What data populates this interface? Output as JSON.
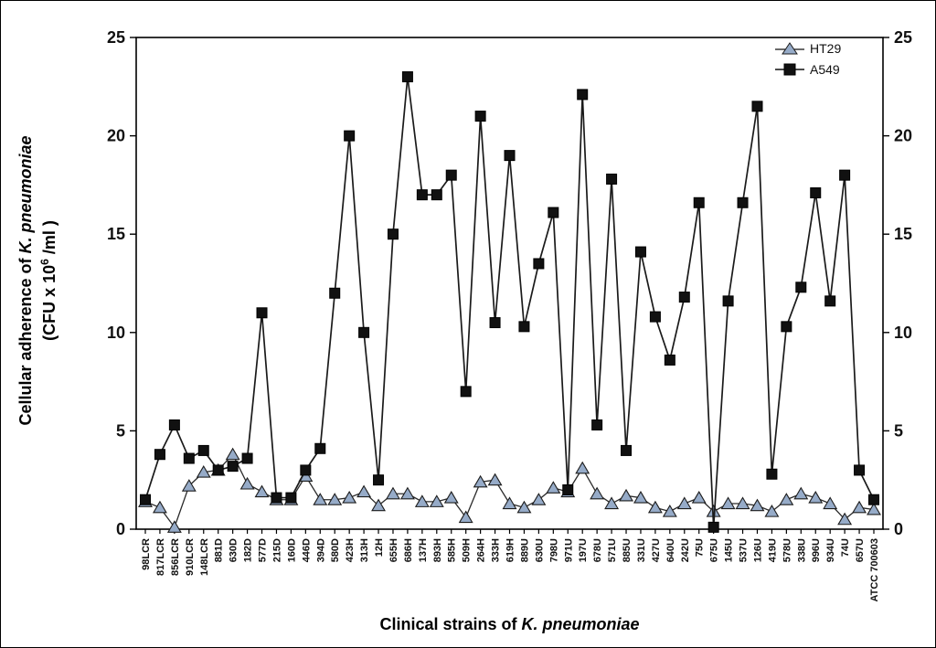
{
  "figure": {
    "y_label_line1_prefix": "Cellular adherence of ",
    "y_label_line1_italic": "K. pneumoniae",
    "y_label_line2_a": "(CFU x 10",
    "y_label_line2_sup": "6",
    "y_label_line2_b": " /ml )",
    "x_label_prefix": "Clinical strains of ",
    "x_label_italic": "K. pneumoniae"
  },
  "legend": {
    "items": [
      {
        "label": "HT29",
        "marker": "triangle"
      },
      {
        "label": "A549",
        "marker": "square"
      }
    ]
  },
  "chart_data": {
    "type": "line",
    "title": "",
    "xlabel": "Clinical strains of K. pneumoniae",
    "ylabel": "Cellular adherence of K. pneumoniae (CFU x 10^6 /ml)",
    "ylim": [
      0,
      25
    ],
    "yticks": [
      0,
      5,
      10,
      15,
      20,
      25
    ],
    "grid": false,
    "legend_position": "top-right",
    "categories": [
      "98LCR",
      "817LCR",
      "856LCR",
      "910LCR",
      "148LCR",
      "881D",
      "630D",
      "182D",
      "577D",
      "215D",
      "160D",
      "446D",
      "394D",
      "580D",
      "423H",
      "313H",
      "12H",
      "655H",
      "686H",
      "137H",
      "893H",
      "585H",
      "509H",
      "264H",
      "333H",
      "619H",
      "889U",
      "630U",
      "798U",
      "971U",
      "197U",
      "678U",
      "571U",
      "885U",
      "331U",
      "427U",
      "640U",
      "242U",
      "75U",
      "675U",
      "145U",
      "537U",
      "126U",
      "419U",
      "578U",
      "338U",
      "996U",
      "934U",
      "74U",
      "657U",
      "ATCC 700603"
    ],
    "series": [
      {
        "name": "HT29",
        "marker": "triangle",
        "fill": "#96abc8",
        "stroke": "#1c1c1c",
        "line_color": "#2a2a2a",
        "line_width": 1.3,
        "values": [
          1.4,
          1.1,
          0.1,
          2.2,
          2.9,
          3.0,
          3.8,
          2.3,
          1.9,
          1.5,
          1.5,
          2.7,
          1.5,
          1.5,
          1.6,
          1.9,
          1.2,
          1.8,
          1.8,
          1.4,
          1.4,
          1.6,
          0.6,
          2.4,
          2.5,
          1.3,
          1.1,
          1.5,
          2.1,
          1.9,
          3.1,
          1.8,
          1.3,
          1.7,
          1.6,
          1.1,
          0.9,
          1.3,
          1.6,
          0.9,
          1.3,
          1.3,
          1.2,
          0.9,
          1.5,
          1.8,
          1.6,
          1.3,
          0.5,
          1.1,
          1.0
        ]
      },
      {
        "name": "A549",
        "marker": "square",
        "fill": "#111111",
        "stroke": "#000000",
        "line_color": "#1a1a1a",
        "line_width": 1.7,
        "values": [
          1.5,
          3.8,
          5.3,
          3.6,
          4.0,
          3.0,
          3.2,
          3.6,
          11.0,
          1.6,
          1.6,
          3.0,
          4.1,
          12.0,
          20.0,
          10.0,
          2.5,
          15.0,
          23.0,
          17.0,
          17.0,
          18.0,
          7.0,
          21.0,
          10.5,
          19.0,
          10.3,
          13.5,
          16.1,
          2.0,
          22.1,
          5.3,
          17.8,
          4.0,
          14.1,
          10.8,
          8.6,
          11.8,
          16.6,
          0.1,
          11.6,
          16.6,
          21.5,
          2.8,
          10.3,
          12.3,
          17.1,
          11.6,
          18.0,
          3.0,
          1.5
        ]
      }
    ]
  }
}
